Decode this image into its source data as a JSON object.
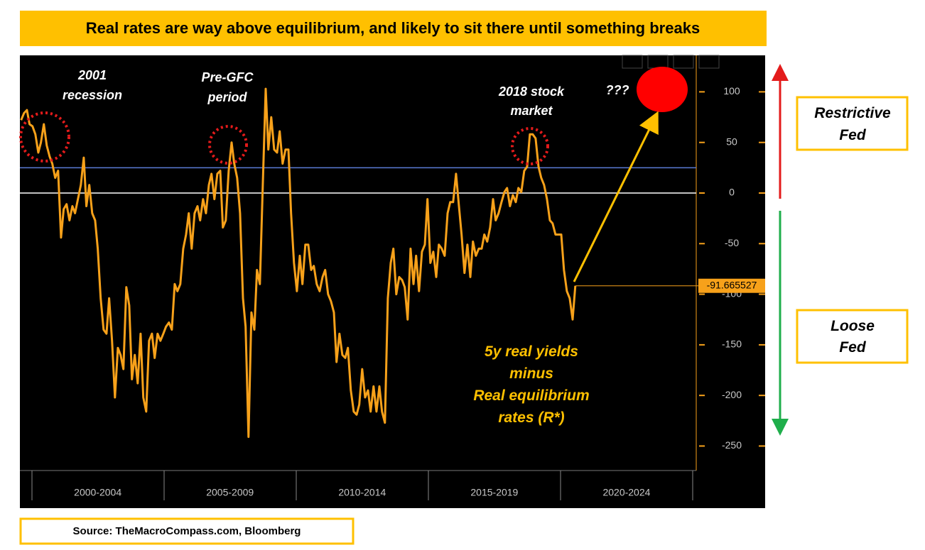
{
  "title": "Real rates are way above equilibrium, and likely to sit there until something breaks",
  "source": "Source: TheMacroCompass.com, Bloomberg",
  "side_labels": [
    {
      "lines": [
        "Restrictive",
        "Fed"
      ]
    },
    {
      "lines": [
        "Loose",
        "Fed"
      ]
    }
  ],
  "chart_data": {
    "type": "line",
    "color": "#f7a11a",
    "annotations": [
      {
        "lines": [
          "2001",
          "recession"
        ]
      },
      {
        "lines": [
          "Pre-GFC",
          "period"
        ]
      },
      {
        "lines": [
          "2018 stock",
          "market"
        ]
      },
      {
        "lines": [
          "???"
        ]
      }
    ],
    "series_label": {
      "lines": [
        "5y real yields",
        "minus",
        "Real equilibrium",
        "rates (R*)"
      ]
    },
    "hlines": [
      {
        "value": 25,
        "color": "#5b7bd5"
      },
      {
        "value": 0,
        "color": "#ffffff"
      }
    ],
    "xlim": [
      1999.5,
      2025
    ],
    "xticks": [
      {
        "value": 2002.5,
        "label": "2000-2004"
      },
      {
        "value": 2007.5,
        "label": "2005-2009"
      },
      {
        "value": 2012.5,
        "label": "2010-2014"
      },
      {
        "value": 2017.5,
        "label": "2015-2019"
      },
      {
        "value": 2022.5,
        "label": "2020-2024"
      }
    ],
    "ylim": [
      -270,
      135
    ],
    "yticks": [
      -250,
      -200,
      -150,
      -100,
      -50,
      0,
      50,
      100
    ],
    "x": [
      1999.6,
      1999.71,
      1999.82,
      1999.92,
      2000.03,
      2000.14,
      2000.25,
      2000.35,
      2000.46,
      2000.57,
      2000.68,
      2000.78,
      2000.89,
      2001.0,
      2001.11,
      2001.21,
      2001.32,
      2001.43,
      2001.54,
      2001.64,
      2001.75,
      2001.86,
      2001.97,
      2002.07,
      2002.18,
      2002.29,
      2002.4,
      2002.5,
      2002.61,
      2002.72,
      2002.83,
      2002.93,
      2003.04,
      2003.15,
      2003.26,
      2003.36,
      2003.47,
      2003.58,
      2003.69,
      2003.79,
      2003.9,
      2004.01,
      2004.12,
      2004.22,
      2004.33,
      2004.44,
      2004.55,
      2004.65,
      2004.76,
      2004.87,
      2004.98,
      2005.08,
      2005.19,
      2005.3,
      2005.41,
      2005.51,
      2005.62,
      2005.73,
      2005.84,
      2005.94,
      2006.05,
      2006.16,
      2006.27,
      2006.37,
      2006.48,
      2006.59,
      2006.7,
      2006.8,
      2006.91,
      2007.02,
      2007.13,
      2007.23,
      2007.34,
      2007.45,
      2007.56,
      2007.66,
      2007.77,
      2007.88,
      2007.99,
      2008.09,
      2008.2,
      2008.31,
      2008.42,
      2008.52,
      2008.63,
      2008.74,
      2008.85,
      2008.95,
      2009.06,
      2009.17,
      2009.28,
      2009.38,
      2009.49,
      2009.6,
      2009.71,
      2009.81,
      2009.92,
      2010.03,
      2010.14,
      2010.24,
      2010.35,
      2010.46,
      2010.57,
      2010.67,
      2010.78,
      2010.89,
      2011.0,
      2011.1,
      2011.21,
      2011.32,
      2011.43,
      2011.53,
      2011.64,
      2011.75,
      2011.86,
      2011.96,
      2012.07,
      2012.18,
      2012.29,
      2012.39,
      2012.5,
      2012.61,
      2012.72,
      2012.82,
      2012.93,
      2013.04,
      2013.15,
      2013.25,
      2013.36,
      2013.47,
      2013.58,
      2013.68,
      2013.79,
      2013.9,
      2014.01,
      2014.11,
      2014.22,
      2014.33,
      2014.44,
      2014.54,
      2014.65,
      2014.76,
      2014.87,
      2014.97,
      2015.08,
      2015.19,
      2015.3,
      2015.4,
      2015.51,
      2015.62,
      2015.73,
      2015.83,
      2015.94,
      2016.05,
      2016.16,
      2016.26,
      2016.37,
      2016.48,
      2016.59,
      2016.69,
      2016.8,
      2016.91,
      2017.02,
      2017.12,
      2017.23,
      2017.34,
      2017.45,
      2017.55,
      2017.66,
      2017.77,
      2017.88,
      2017.98,
      2018.09,
      2018.2,
      2018.31,
      2018.41,
      2018.52,
      2018.63,
      2018.74,
      2018.84,
      2018.95,
      2019.06,
      2019.17,
      2019.27,
      2019.38,
      2019.49,
      2019.6,
      2019.7,
      2019.81,
      2019.92,
      2020.03,
      2020.13,
      2020.24,
      2020.35,
      2020.46,
      2020.56
    ],
    "values": [
      72,
      79,
      82,
      68,
      66,
      58,
      40,
      50,
      68,
      47,
      36,
      29,
      15,
      22,
      -44,
      -16,
      -11,
      -27,
      -13,
      -20,
      -6,
      8,
      35,
      -13,
      8,
      -20,
      -27,
      -55,
      -104,
      -135,
      -139,
      -104,
      -146,
      -202,
      -153,
      -160,
      -174,
      -93,
      -111,
      -184,
      -160,
      -188,
      -139,
      -202,
      -216,
      -146,
      -139,
      -163,
      -139,
      -146,
      -139,
      -132,
      -128,
      -135,
      -90,
      -97,
      -90,
      -55,
      -41,
      -20,
      -55,
      -20,
      -13,
      -27,
      -6,
      -20,
      8,
      19,
      -6,
      19,
      22,
      -34,
      -27,
      22,
      50,
      29,
      15,
      -20,
      -104,
      -132,
      -241,
      -118,
      -135,
      -76,
      -90,
      8,
      103,
      43,
      75,
      43,
      40,
      61,
      29,
      43,
      43,
      -20,
      -69,
      -97,
      -62,
      -90,
      -51,
      -51,
      -76,
      -72,
      -90,
      -97,
      -83,
      -76,
      -100,
      -107,
      -118,
      -167,
      -139,
      -160,
      -163,
      -153,
      -195,
      -216,
      -219,
      -209,
      -174,
      -202,
      -195,
      -216,
      -191,
      -216,
      -191,
      -216,
      -227,
      -104,
      -69,
      -55,
      -100,
      -83,
      -86,
      -93,
      -125,
      -55,
      -90,
      -62,
      -97,
      -58,
      -51,
      -6,
      -69,
      -58,
      -83,
      -51,
      -55,
      -62,
      -20,
      -9,
      -9,
      19,
      -13,
      -41,
      -79,
      -51,
      -83,
      -48,
      -62,
      -55,
      -55,
      -41,
      -48,
      -34,
      -6,
      -27,
      -20,
      -9,
      1,
      5,
      -13,
      -2,
      -9,
      5,
      1,
      22,
      26,
      58,
      58,
      54,
      26,
      15,
      8,
      -6,
      -27,
      -30,
      -41,
      -41,
      -41,
      -76,
      -97,
      -104,
      -125,
      -91.665527
    ]
  }
}
